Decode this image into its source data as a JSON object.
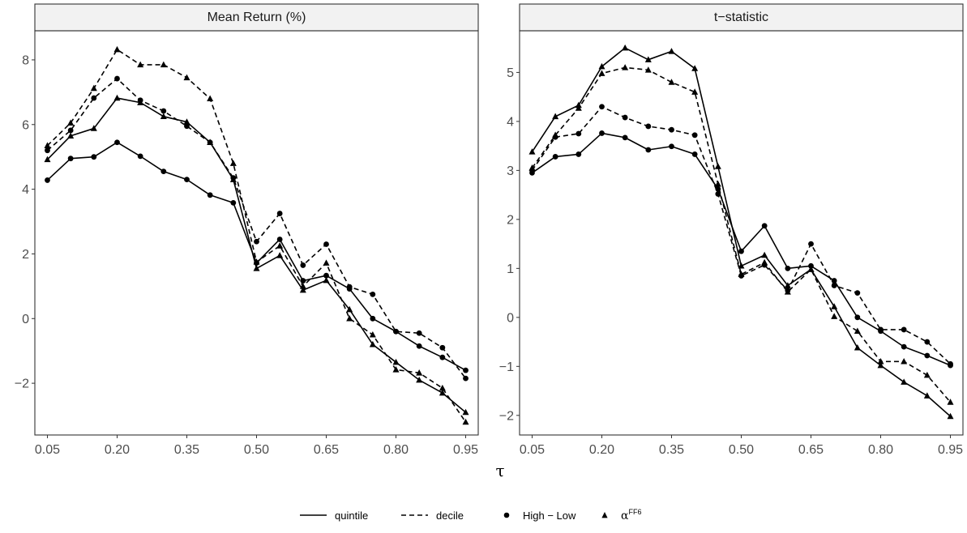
{
  "chart_data": [
    {
      "type": "line",
      "title": "Mean Return (%)",
      "xlabel": "τ",
      "ylabel": "",
      "x": [
        0.05,
        0.1,
        0.15,
        0.2,
        0.25,
        0.3,
        0.35,
        0.4,
        0.45,
        0.5,
        0.55,
        0.6,
        0.65,
        0.7,
        0.75,
        0.8,
        0.85,
        0.9,
        0.95
      ],
      "xticks": [
        "0.05",
        "0.20",
        "0.35",
        "0.50",
        "0.65",
        "0.80",
        "0.95"
      ],
      "yticks": [
        "−2",
        "0",
        "2",
        "4",
        "6",
        "8"
      ],
      "xlim": [
        0.023,
        0.977
      ],
      "ylim": [
        -3.6,
        8.9
      ],
      "series": [
        {
          "name": "quintile High − Low",
          "line": "solid",
          "marker": "circle",
          "values": [
            4.28,
            4.95,
            5.0,
            5.45,
            5.02,
            4.55,
            4.3,
            3.82,
            3.58,
            1.72,
            2.45,
            1.17,
            1.33,
            0.92,
            0.0,
            -0.4,
            -0.85,
            -1.2,
            -1.6
          ]
        },
        {
          "name": "quintile αFF6",
          "line": "solid",
          "marker": "triangle",
          "values": [
            4.92,
            5.65,
            5.88,
            6.82,
            6.68,
            6.25,
            6.08,
            5.45,
            4.3,
            1.55,
            1.95,
            0.88,
            1.18,
            0.28,
            -0.8,
            -1.35,
            -1.9,
            -2.3,
            -2.9
          ]
        },
        {
          "name": "decile High − Low",
          "line": "dashed",
          "marker": "circle",
          "values": [
            5.2,
            5.82,
            6.82,
            7.42,
            6.75,
            6.42,
            5.95,
            5.45,
            4.35,
            2.38,
            3.25,
            1.65,
            2.3,
            0.98,
            0.75,
            -0.4,
            -0.45,
            -0.9,
            -1.85
          ]
        },
        {
          "name": "decile αFF6",
          "line": "dashed",
          "marker": "triangle",
          "values": [
            5.35,
            6.05,
            7.12,
            8.32,
            7.85,
            7.85,
            7.45,
            6.8,
            4.8,
            1.75,
            2.25,
            1.0,
            1.72,
            0.0,
            -0.5,
            -1.58,
            -1.68,
            -2.15,
            -3.2
          ]
        }
      ]
    },
    {
      "type": "line",
      "title": "t−statistic",
      "xlabel": "τ",
      "ylabel": "",
      "x": [
        0.05,
        0.1,
        0.15,
        0.2,
        0.25,
        0.3,
        0.35,
        0.4,
        0.45,
        0.5,
        0.55,
        0.6,
        0.65,
        0.7,
        0.75,
        0.8,
        0.85,
        0.9,
        0.95
      ],
      "xticks": [
        "0.05",
        "0.20",
        "0.35",
        "0.50",
        "0.65",
        "0.80",
        "0.95"
      ],
      "yticks": [
        "−2",
        "−1",
        "0",
        "1",
        "2",
        "3",
        "4",
        "5"
      ],
      "xlim": [
        0.023,
        0.977
      ],
      "ylim": [
        -2.4,
        5.85
      ],
      "series": [
        {
          "name": "quintile High − Low",
          "line": "solid",
          "marker": "circle",
          "values": [
            2.95,
            3.28,
            3.33,
            3.76,
            3.67,
            3.42,
            3.49,
            3.33,
            2.62,
            1.35,
            1.87,
            1.0,
            1.05,
            0.75,
            0.0,
            -0.28,
            -0.6,
            -0.78,
            -0.98
          ]
        },
        {
          "name": "quintile αFF6",
          "line": "solid",
          "marker": "triangle",
          "values": [
            3.38,
            4.1,
            4.33,
            5.12,
            5.5,
            5.26,
            5.43,
            5.08,
            3.08,
            1.05,
            1.27,
            0.65,
            0.98,
            0.22,
            -0.62,
            -0.98,
            -1.32,
            -1.6,
            -2.02
          ]
        },
        {
          "name": "decile High − Low",
          "line": "dashed",
          "marker": "circle",
          "values": [
            3.0,
            3.68,
            3.75,
            4.3,
            4.08,
            3.9,
            3.83,
            3.72,
            2.52,
            0.85,
            1.07,
            0.55,
            1.5,
            0.65,
            0.5,
            -0.25,
            -0.25,
            -0.5,
            -0.95
          ]
        },
        {
          "name": "decile αFF6",
          "line": "dashed",
          "marker": "triangle",
          "values": [
            3.05,
            3.72,
            4.27,
            4.98,
            5.1,
            5.05,
            4.8,
            4.6,
            2.72,
            0.88,
            1.12,
            0.52,
            0.98,
            0.02,
            -0.28,
            -0.9,
            -0.9,
            -1.18,
            -1.73
          ]
        }
      ]
    }
  ],
  "legend": {
    "placement": "bottom",
    "line_items": [
      {
        "label": "quintile",
        "style": "solid"
      },
      {
        "label": "decile",
        "style": "dashed"
      }
    ],
    "marker_items": [
      {
        "label": "High − Low",
        "shape": "circle"
      },
      {
        "label": "α",
        "sup": "FF6",
        "shape": "triangle"
      }
    ]
  },
  "colors": {
    "line": "#000000",
    "panel_border": "#333333",
    "strip_fill": "#f2f2f2",
    "tick_text": "#4d4d4d"
  }
}
